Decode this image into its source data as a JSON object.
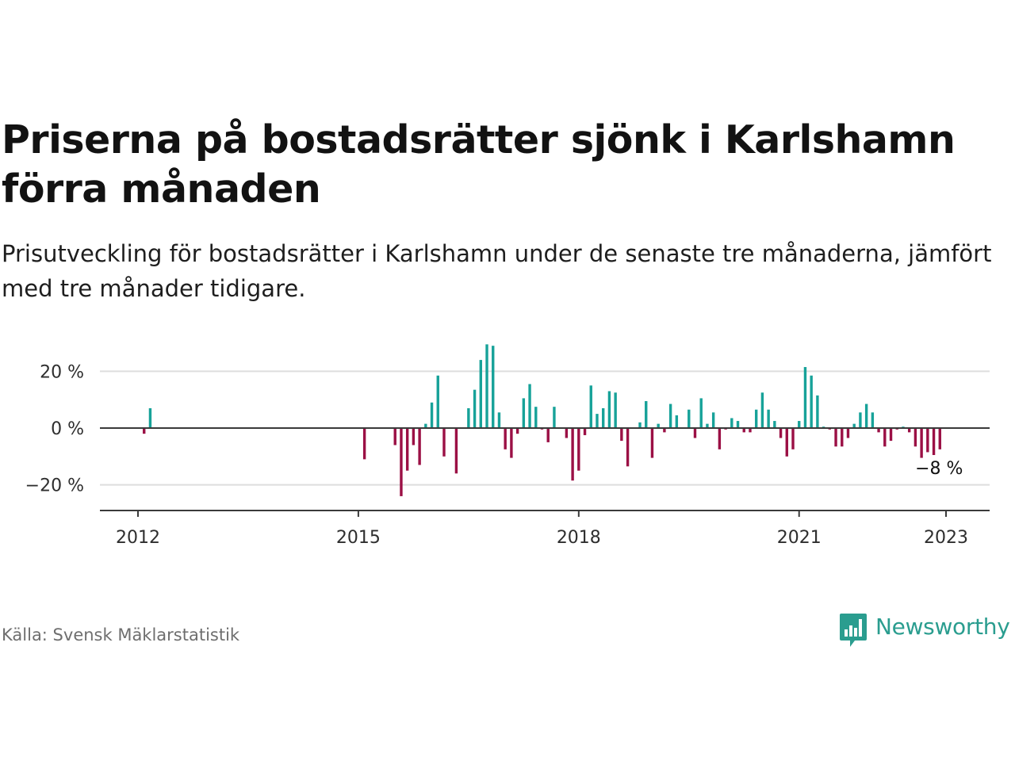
{
  "title": "Priserna på bostadsrätter sjönk i Karlshamn förra månaden",
  "subtitle": "Prisutveckling för bostadsrätter i Karlshamn under de senaste tre månaderna, jämfört med tre månader tidigare.",
  "source": "Källa: Svensk Mäklarstatistik",
  "brand": {
    "name": "Newsworthy",
    "logo_icon": "bar-chart-speech-bubble-icon"
  },
  "colors": {
    "positive": "#17a299",
    "negative": "#9b1045",
    "brand": "#2a9d8f"
  },
  "chart_data": {
    "type": "bar",
    "title": "",
    "xlabel": "",
    "ylabel": "",
    "x_ticks": [
      "2012",
      "2015",
      "2018",
      "2021",
      "2023"
    ],
    "y_ticks": [
      {
        "value": 20,
        "label": "20 %"
      },
      {
        "value": 0,
        "label": "0 %"
      },
      {
        "value": -20,
        "label": "−20 %"
      }
    ],
    "ylim": [
      -29,
      32
    ],
    "grid": true,
    "last_value_label": "−8 %",
    "series": [
      {
        "values": [
          {
            "date": "2012-02",
            "value": -2
          },
          {
            "date": "2012-03",
            "value": 7
          },
          {
            "date": "2015-02",
            "value": -11
          },
          {
            "date": "2015-07",
            "value": -6
          },
          {
            "date": "2015-08",
            "value": -24
          },
          {
            "date": "2015-09",
            "value": -15
          },
          {
            "date": "2015-10",
            "value": -6
          },
          {
            "date": "2015-11",
            "value": -13
          },
          {
            "date": "2015-12",
            "value": 1.5
          },
          {
            "date": "2016-01",
            "value": 9
          },
          {
            "date": "2016-02",
            "value": 18.5
          },
          {
            "date": "2016-03",
            "value": -10
          },
          {
            "date": "2016-05",
            "value": -16
          },
          {
            "date": "2016-07",
            "value": 7
          },
          {
            "date": "2016-08",
            "value": 13.5
          },
          {
            "date": "2016-09",
            "value": 24
          },
          {
            "date": "2016-10",
            "value": 29.5
          },
          {
            "date": "2016-11",
            "value": 29
          },
          {
            "date": "2016-12",
            "value": 5.5
          },
          {
            "date": "2017-01",
            "value": -7.5
          },
          {
            "date": "2017-02",
            "value": -10.5
          },
          {
            "date": "2017-03",
            "value": -2
          },
          {
            "date": "2017-04",
            "value": 10.5
          },
          {
            "date": "2017-05",
            "value": 15.5
          },
          {
            "date": "2017-06",
            "value": 7.5
          },
          {
            "date": "2017-07",
            "value": -0.5
          },
          {
            "date": "2017-08",
            "value": -5
          },
          {
            "date": "2017-09",
            "value": 7.5
          },
          {
            "date": "2017-11",
            "value": -3.5
          },
          {
            "date": "2017-12",
            "value": -18.5
          },
          {
            "date": "2018-01",
            "value": -15
          },
          {
            "date": "2018-02",
            "value": -2.5
          },
          {
            "date": "2018-03",
            "value": 15
          },
          {
            "date": "2018-04",
            "value": 5
          },
          {
            "date": "2018-05",
            "value": 7
          },
          {
            "date": "2018-06",
            "value": 13
          },
          {
            "date": "2018-07",
            "value": 12.5
          },
          {
            "date": "2018-08",
            "value": -4.5
          },
          {
            "date": "2018-09",
            "value": -13.5
          },
          {
            "date": "2018-11",
            "value": 2
          },
          {
            "date": "2018-12",
            "value": 9.5
          },
          {
            "date": "2019-01",
            "value": -10.5
          },
          {
            "date": "2019-02",
            "value": 1.5
          },
          {
            "date": "2019-03",
            "value": -1.5
          },
          {
            "date": "2019-04",
            "value": 8.5
          },
          {
            "date": "2019-05",
            "value": 4.5
          },
          {
            "date": "2019-07",
            "value": 6.5
          },
          {
            "date": "2019-08",
            "value": -3.5
          },
          {
            "date": "2019-09",
            "value": 10.5
          },
          {
            "date": "2019-10",
            "value": 1.5
          },
          {
            "date": "2019-11",
            "value": 5.5
          },
          {
            "date": "2019-12",
            "value": -7.5
          },
          {
            "date": "2020-01",
            "value": -0.5
          },
          {
            "date": "2020-02",
            "value": 3.5
          },
          {
            "date": "2020-03",
            "value": 2.5
          },
          {
            "date": "2020-04",
            "value": -1.5
          },
          {
            "date": "2020-05",
            "value": -1.5
          },
          {
            "date": "2020-06",
            "value": 6.5
          },
          {
            "date": "2020-07",
            "value": 12.5
          },
          {
            "date": "2020-08",
            "value": 6.5
          },
          {
            "date": "2020-09",
            "value": 2.5
          },
          {
            "date": "2020-10",
            "value": -3.5
          },
          {
            "date": "2020-11",
            "value": -10
          },
          {
            "date": "2020-12",
            "value": -7.5
          },
          {
            "date": "2021-01",
            "value": 2.5
          },
          {
            "date": "2021-02",
            "value": 21.5
          },
          {
            "date": "2021-03",
            "value": 18.5
          },
          {
            "date": "2021-04",
            "value": 11.5
          },
          {
            "date": "2021-05",
            "value": 0.5
          },
          {
            "date": "2021-06",
            "value": -0.5
          },
          {
            "date": "2021-07",
            "value": -6.5
          },
          {
            "date": "2021-08",
            "value": -6.5
          },
          {
            "date": "2021-09",
            "value": -3.5
          },
          {
            "date": "2021-10",
            "value": 1.5
          },
          {
            "date": "2021-11",
            "value": 5.5
          },
          {
            "date": "2021-12",
            "value": 8.5
          },
          {
            "date": "2022-01",
            "value": 5.5
          },
          {
            "date": "2022-02",
            "value": -1.5
          },
          {
            "date": "2022-03",
            "value": -6.5
          },
          {
            "date": "2022-04",
            "value": -4.5
          },
          {
            "date": "2022-05",
            "value": -0.5
          },
          {
            "date": "2022-06",
            "value": 0.5
          },
          {
            "date": "2022-07",
            "value": -1.5
          },
          {
            "date": "2022-08",
            "value": -6.5
          },
          {
            "date": "2022-09",
            "value": -10.5
          },
          {
            "date": "2022-10",
            "value": -8.5
          },
          {
            "date": "2022-11",
            "value": -9.5
          },
          {
            "date": "2022-12",
            "value": -7.5
          }
        ]
      }
    ]
  }
}
